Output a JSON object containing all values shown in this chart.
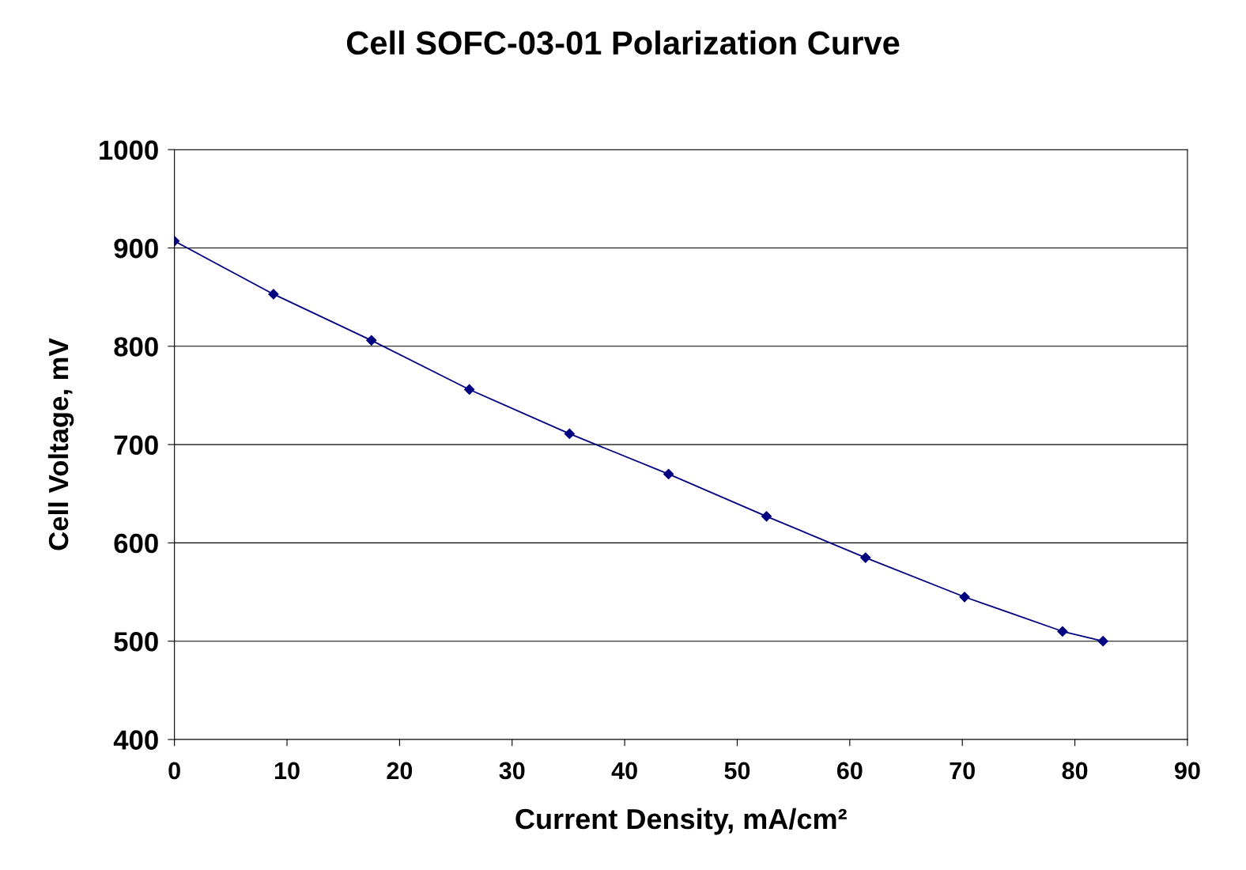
{
  "chart_data": {
    "type": "line",
    "title": "Cell SOFC-03-01 Polarization Curve",
    "xlabel": "Current Density, mA/cm²",
    "ylabel": "Cell Voltage, mV",
    "x": [
      0,
      8.8,
      17.5,
      26.2,
      35.1,
      43.9,
      52.6,
      61.4,
      70.2,
      78.9,
      82.5
    ],
    "series": [
      {
        "color": "#000080",
        "values": [
          907,
          853,
          806,
          756,
          711,
          670,
          627,
          585,
          545,
          510,
          500
        ]
      }
    ],
    "xlim": [
      0,
      90
    ],
    "xticks": [
      0,
      10,
      20,
      30,
      40,
      50,
      60,
      70,
      80,
      90
    ],
    "ylim": [
      400,
      1000
    ],
    "yticks": [
      400,
      500,
      600,
      700,
      800,
      900,
      1000
    ],
    "grid": "y",
    "legend": false,
    "marker": "diamond",
    "line_style": "solid"
  }
}
